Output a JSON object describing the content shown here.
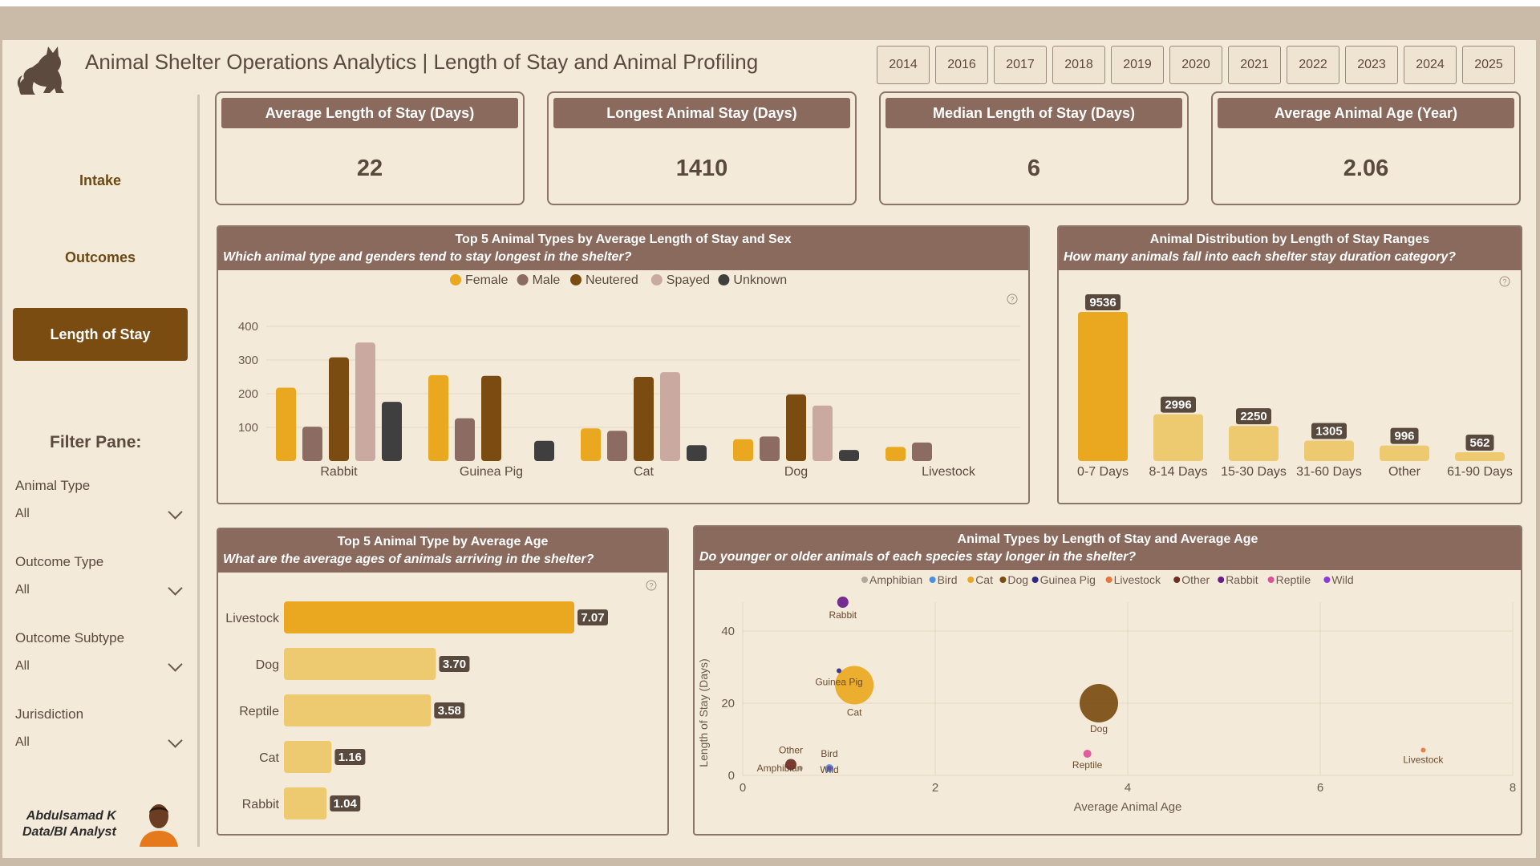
{
  "header": {
    "title": "Animal Shelter Operations Analytics | Length of Stay and Animal Profiling",
    "years": [
      "2014",
      "2016",
      "2017",
      "2018",
      "2019",
      "2020",
      "2021",
      "2022",
      "2023",
      "2024",
      "2025"
    ]
  },
  "nav": {
    "intake": "Intake",
    "outcomes": "Outcomes",
    "length_of_stay": "Length of Stay"
  },
  "filters": {
    "title": "Filter Pane:",
    "items": [
      {
        "label": "Animal Type",
        "value": "All"
      },
      {
        "label": "Outcome Type",
        "value": "All"
      },
      {
        "label": "Outcome Subtype",
        "value": "All"
      },
      {
        "label": "Jurisdiction",
        "value": "All"
      }
    ]
  },
  "author": {
    "name": "Abdulsamad K",
    "role": "Data/BI Analyst"
  },
  "kpis": [
    {
      "label": "Average Length of Stay (Days)",
      "value": "22"
    },
    {
      "label": "Longest Animal Stay (Days)",
      "value": "1410"
    },
    {
      "label": "Median Length of Stay (Days)",
      "value": "6"
    },
    {
      "label": "Average Animal Age (Year)",
      "value": "2.06"
    }
  ],
  "colors": {
    "accent": "#7b4c12",
    "panel_header": "#8b6a5e",
    "background": "#f4ead9",
    "gold": "#e9a81f",
    "light_gold": "#edc96f"
  },
  "chart_data": [
    {
      "type": "bar",
      "title": "Top 5 Animal Types by Average Length of Stay and Sex",
      "subtitle": "Which animal type and genders tend to stay longest in the shelter?",
      "categories": [
        "Rabbit",
        "Guinea Pig",
        "Cat",
        "Dog",
        "Livestock"
      ],
      "series": [
        {
          "name": "Female",
          "color": "#e9a81f",
          "values": [
            218,
            255,
            97,
            65,
            42
          ]
        },
        {
          "name": "Male",
          "color": "#8c6b63",
          "values": [
            102,
            127,
            90,
            73,
            55
          ]
        },
        {
          "name": "Neutered",
          "color": "#7b4c12",
          "values": [
            308,
            253,
            250,
            198,
            null
          ]
        },
        {
          "name": "Spayed",
          "color": "#c9a9a0",
          "values": [
            352,
            null,
            264,
            165,
            null
          ]
        },
        {
          "name": "Unknown",
          "color": "#3f3f3f",
          "values": [
            176,
            60,
            47,
            33,
            null
          ]
        }
      ],
      "yticks": [
        "100",
        "200",
        "300",
        "400"
      ],
      "ylim": [
        0,
        420
      ],
      "grid": true,
      "legend_position": "top"
    },
    {
      "type": "bar",
      "title": "Animal Distribution by Length of Stay Ranges",
      "subtitle": "How many animals fall into each shelter stay duration category?",
      "categories": [
        "0-7 Days",
        "8-14 Days",
        "15-30 Days",
        "31-60 Days",
        "Other",
        "61-90 Days"
      ],
      "values": [
        9536,
        2996,
        2250,
        1305,
        996,
        562
      ],
      "colors": [
        "#e9a81f",
        "#edc96f",
        "#edc96f",
        "#edc96f",
        "#edc96f",
        "#edc96f"
      ],
      "ylim": [
        0,
        9536
      ]
    },
    {
      "type": "bar",
      "orientation": "horizontal",
      "title": "Top 5 Animal Type by Average Age",
      "subtitle": "What are the average ages of animals arriving in the shelter?",
      "categories": [
        "Livestock",
        "Dog",
        "Reptile",
        "Cat",
        "Rabbit"
      ],
      "values": [
        7.07,
        3.7,
        3.58,
        1.16,
        1.04
      ],
      "labels": [
        "7.07",
        "3.70",
        "3.58",
        "1.16",
        "1.04"
      ],
      "colors": [
        "#e9a81f",
        "#edc96f",
        "#edc96f",
        "#edc96f",
        "#edc96f"
      ],
      "xlim": [
        0,
        7.07
      ]
    },
    {
      "type": "scatter",
      "title": "Animal Types by Length of Stay and Average Age",
      "subtitle": "Do younger or older animals of each species stay longer in the shelter?",
      "xlabel": "Average Animal Age",
      "ylabel": "Length of Stay (Days)",
      "xlim": [
        0,
        8
      ],
      "ylim": [
        0,
        48
      ],
      "xticks": [
        "0",
        "2",
        "4",
        "6",
        "8"
      ],
      "yticks": [
        "0",
        "20",
        "40"
      ],
      "legend_position": "top",
      "series": [
        {
          "name": "Amphibian",
          "color": "#b0a79e",
          "x": 0.6,
          "y": 2,
          "size": 1
        },
        {
          "name": "Bird",
          "color": "#4a90e2",
          "x": 0.9,
          "y": 2,
          "size": 2
        },
        {
          "name": "Cat",
          "color": "#e9a81f",
          "x": 1.16,
          "y": 25,
          "size": 10
        },
        {
          "name": "Dog",
          "color": "#7b4c12",
          "x": 3.7,
          "y": 20,
          "size": 9
        },
        {
          "name": "Guinea Pig",
          "color": "#2a2a8a",
          "x": 1.0,
          "y": 29,
          "size": 1
        },
        {
          "name": "Livestock",
          "color": "#e8753a",
          "x": 7.07,
          "y": 7,
          "size": 1
        },
        {
          "name": "Other",
          "color": "#6e2c25",
          "x": 0.5,
          "y": 3,
          "size": 3
        },
        {
          "name": "Rabbit",
          "color": "#6a1a8a",
          "x": 1.04,
          "y": 48,
          "size": 3
        },
        {
          "name": "Reptile",
          "color": "#e0509a",
          "x": 3.58,
          "y": 6,
          "size": 2
        },
        {
          "name": "Wild",
          "color": "#8a3ae0",
          "x": 0.9,
          "y": 2,
          "size": 1
        }
      ]
    }
  ]
}
